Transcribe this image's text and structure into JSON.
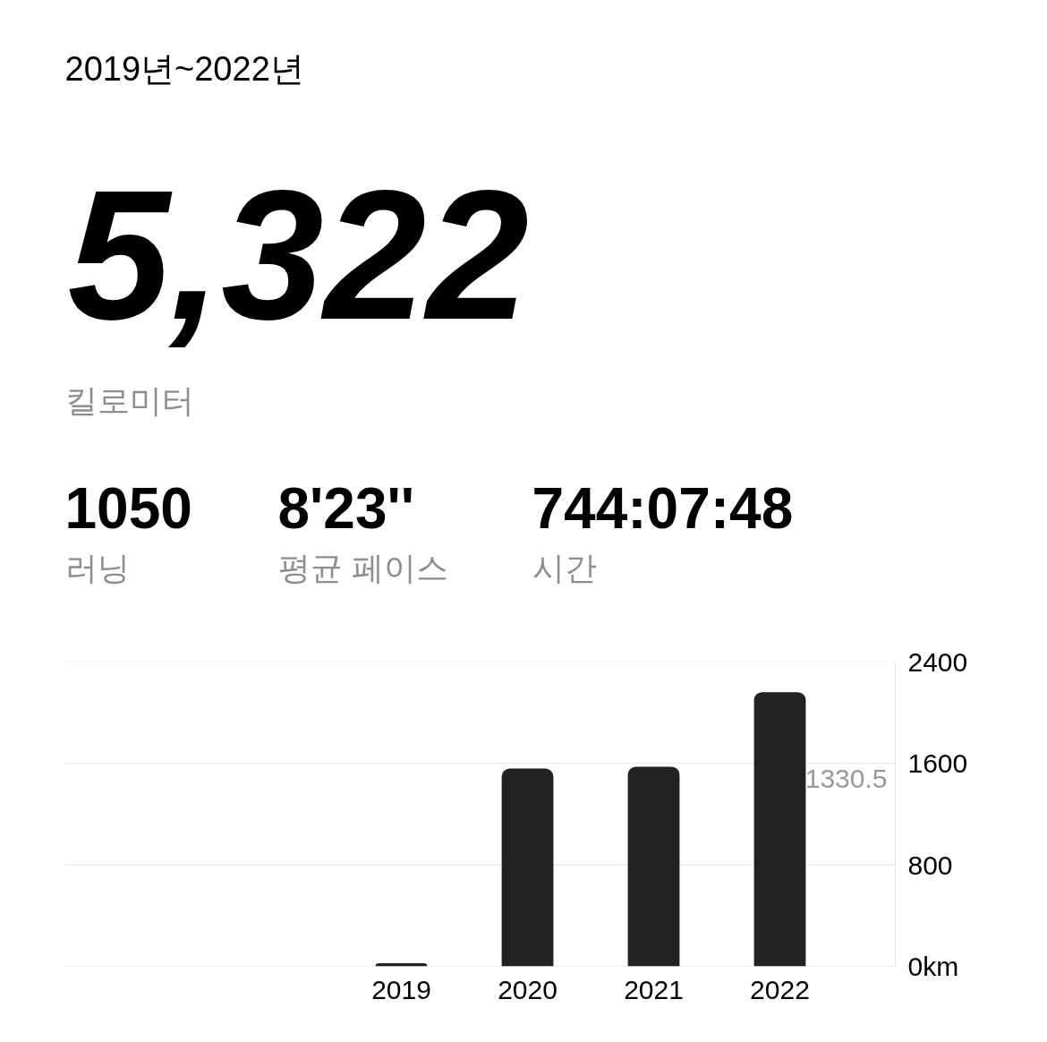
{
  "chart_data": [
    {
      "type": "other",
      "title": "2019년~2022년",
      "annotations": [
        "5,322",
        "킬로미터",
        "1050",
        "러닝",
        "8'23''",
        "평균 페이스",
        "744:07:48",
        "시간"
      ]
    },
    {
      "type": "bar",
      "categories": [
        "2019",
        "2020",
        "2021",
        "2022"
      ],
      "values": [
        25,
        1560,
        1575,
        2162
      ],
      "color": "#222222",
      "ylim": [
        0,
        2400
      ],
      "yticks": [
        {
          "value": 0,
          "label": "0km"
        },
        800,
        1600,
        2400
      ],
      "grid": "y",
      "annotations": [
        "1330.5"
      ]
    }
  ]
}
